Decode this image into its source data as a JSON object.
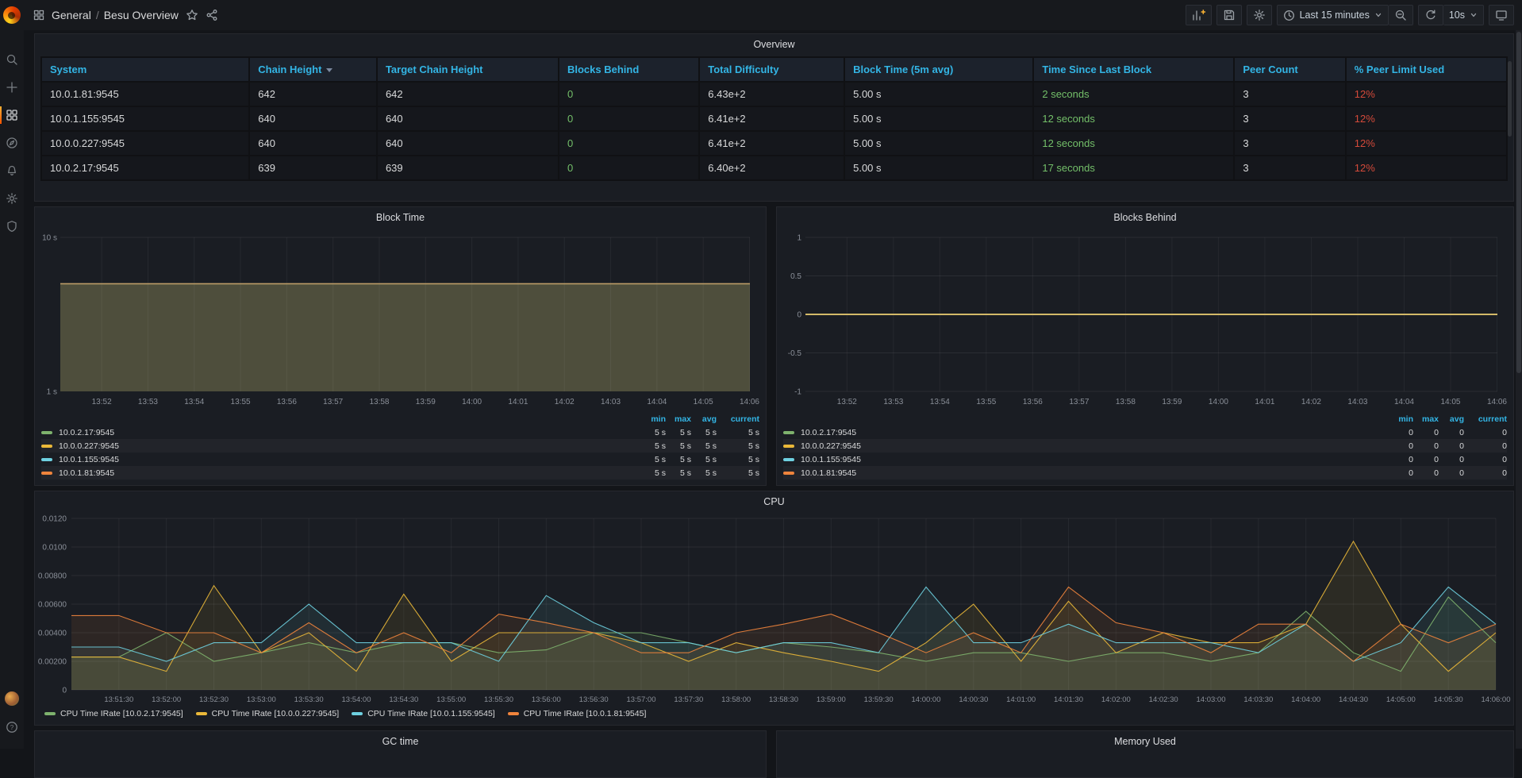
{
  "nav": {
    "breadcrumb": {
      "section": "General",
      "separator": "/",
      "title": "Besu Overview"
    },
    "time_picker_label": "Last 15 minutes",
    "refresh_interval": "10s"
  },
  "panels": {
    "overview": {
      "title": "Overview",
      "columns": [
        "System",
        "Chain Height",
        "Target Chain Height",
        "Blocks Behind",
        "Total Difficulty",
        "Block Time (5m avg)",
        "Time Since Last Block",
        "Peer Count",
        "% Peer Limit Used"
      ],
      "column_widths_pct": [
        14.2,
        8.7,
        12.4,
        9.6,
        9.9,
        12.9,
        13.7,
        7.6,
        11
      ],
      "sorted_column_index": 1,
      "green_columns": [
        3,
        6
      ],
      "red_columns": [
        8
      ],
      "rows": [
        [
          "10.0.1.81:9545",
          "642",
          "642",
          "0",
          "6.43e+2",
          "5.00 s",
          "2 seconds",
          "3",
          "12%"
        ],
        [
          "10.0.1.155:9545",
          "640",
          "640",
          "0",
          "6.41e+2",
          "5.00 s",
          "12 seconds",
          "3",
          "12%"
        ],
        [
          "10.0.0.227:9545",
          "640",
          "640",
          "0",
          "6.41e+2",
          "5.00 s",
          "12 seconds",
          "3",
          "12%"
        ],
        [
          "10.0.2.17:9545",
          "639",
          "639",
          "0",
          "6.40e+2",
          "5.00 s",
          "17 seconds",
          "3",
          "12%"
        ]
      ]
    },
    "gc_time": {
      "title": "GC time"
    },
    "memory_used": {
      "title": "Memory Used"
    }
  },
  "chart_data": [
    {
      "id": "block-time",
      "type": "area",
      "title": "Block Time",
      "y_scale": "log10",
      "ylim": [
        1,
        10
      ],
      "y_ticks": [
        {
          "label": "10 s",
          "value": 10
        },
        {
          "label": "1 s",
          "value": 1
        }
      ],
      "x_ticks": [
        "13:52",
        "13:53",
        "13:54",
        "13:55",
        "13:56",
        "13:57",
        "13:58",
        "13:59",
        "14:00",
        "14:01",
        "14:02",
        "14:03",
        "14:04",
        "14:05",
        "14:06"
      ],
      "series": [
        {
          "name": "10.0.2.17:9545",
          "color": "#7EB26D",
          "value": 5
        },
        {
          "name": "10.0.0.227:9545",
          "color": "#EAB839",
          "value": 5
        },
        {
          "name": "10.0.1.155:9545",
          "color": "#6ED0E0",
          "value": 5
        },
        {
          "name": "10.0.1.81:9545",
          "color": "#EF843C",
          "value": 5
        }
      ],
      "legend": {
        "columns": [
          "min",
          "max",
          "avg",
          "current"
        ],
        "rows": [
          {
            "name": "10.0.2.17:9545",
            "color": "#7EB26D",
            "values": [
              "5 s",
              "5 s",
              "5 s",
              "5 s"
            ]
          },
          {
            "name": "10.0.0.227:9545",
            "color": "#EAB839",
            "values": [
              "5 s",
              "5 s",
              "5 s",
              "5 s"
            ]
          },
          {
            "name": "10.0.1.155:9545",
            "color": "#6ED0E0",
            "values": [
              "5 s",
              "5 s",
              "5 s",
              "5 s"
            ]
          },
          {
            "name": "10.0.1.81:9545",
            "color": "#EF843C",
            "values": [
              "5 s",
              "5 s",
              "5 s",
              "5 s"
            ]
          }
        ]
      }
    },
    {
      "id": "blocks-behind",
      "type": "line",
      "title": "Blocks Behind",
      "ylim": [
        -1,
        1
      ],
      "y_ticks": [
        {
          "label": "1",
          "value": 1
        },
        {
          "label": "0.5",
          "value": 0.5
        },
        {
          "label": "0",
          "value": 0
        },
        {
          "label": "-0.5",
          "value": -0.5
        },
        {
          "label": "-1",
          "value": -1
        }
      ],
      "x_ticks": [
        "13:52",
        "13:53",
        "13:54",
        "13:55",
        "13:56",
        "13:57",
        "13:58",
        "13:59",
        "14:00",
        "14:01",
        "14:02",
        "14:03",
        "14:04",
        "14:05",
        "14:06"
      ],
      "flat_value": 0,
      "flat_line_color": "#D3B968",
      "series": [
        {
          "name": "10.0.2.17:9545",
          "color": "#7EB26D",
          "value": 0
        },
        {
          "name": "10.0.0.227:9545",
          "color": "#EAB839",
          "value": 0
        },
        {
          "name": "10.0.1.155:9545",
          "color": "#6ED0E0",
          "value": 0
        },
        {
          "name": "10.0.1.81:9545",
          "color": "#EF843C",
          "value": 0
        }
      ],
      "legend": {
        "columns": [
          "min",
          "max",
          "avg",
          "current"
        ],
        "rows": [
          {
            "name": "10.0.2.17:9545",
            "color": "#7EB26D",
            "values": [
              "0",
              "0",
              "0",
              "0"
            ]
          },
          {
            "name": "10.0.0.227:9545",
            "color": "#EAB839",
            "values": [
              "0",
              "0",
              "0",
              "0"
            ]
          },
          {
            "name": "10.0.1.155:9545",
            "color": "#6ED0E0",
            "values": [
              "0",
              "0",
              "0",
              "0"
            ]
          },
          {
            "name": "10.0.1.81:9545",
            "color": "#EF843C",
            "values": [
              "0",
              "0",
              "0",
              "0"
            ]
          }
        ]
      }
    },
    {
      "id": "cpu",
      "type": "line",
      "title": "CPU",
      "ylim": [
        0,
        0.012
      ],
      "y_ticks": [
        {
          "label": "0.0120",
          "value": 0.012
        },
        {
          "label": "0.0100",
          "value": 0.01
        },
        {
          "label": "0.00800",
          "value": 0.008
        },
        {
          "label": "0.00600",
          "value": 0.006
        },
        {
          "label": "0.00400",
          "value": 0.004
        },
        {
          "label": "0.00200",
          "value": 0.002
        },
        {
          "label": "0",
          "value": 0
        }
      ],
      "x_ticks": [
        "13:51:30",
        "13:52:00",
        "13:52:30",
        "13:53:00",
        "13:53:30",
        "13:54:00",
        "13:54:30",
        "13:55:00",
        "13:55:30",
        "13:56:00",
        "13:56:30",
        "13:57:00",
        "13:57:30",
        "13:58:00",
        "13:58:30",
        "13:59:00",
        "13:59:30",
        "14:00:00",
        "14:00:30",
        "14:01:00",
        "14:01:30",
        "14:02:00",
        "14:02:30",
        "14:03:00",
        "14:03:30",
        "14:04:00",
        "14:04:30",
        "14:05:00",
        "14:05:30",
        "14:06:00"
      ],
      "series": [
        {
          "name": "CPU Time IRate [10.0.2.17:9545]",
          "color": "#7EB26D",
          "values": [
            0.0023,
            0.004,
            0.002,
            0.0026,
            0.0033,
            0.0026,
            0.0033,
            0.0033,
            0.0026,
            0.0028,
            0.004,
            0.004,
            0.0033,
            0.0026,
            0.0033,
            0.003,
            0.0026,
            0.002,
            0.0026,
            0.0026,
            0.002,
            0.0026,
            0.0026,
            0.002,
            0.0026,
            0.0055,
            0.0026,
            0.0013,
            0.0065,
            0.0033
          ]
        },
        {
          "name": "CPU Time IRate [10.0.0.227:9545]",
          "color": "#EAB839",
          "values": [
            0.0023,
            0.0013,
            0.0073,
            0.0026,
            0.004,
            0.0013,
            0.0067,
            0.002,
            0.004,
            0.004,
            0.004,
            0.0033,
            0.002,
            0.0033,
            0.0026,
            0.002,
            0.0013,
            0.0033,
            0.006,
            0.002,
            0.0062,
            0.0026,
            0.004,
            0.0033,
            0.0033,
            0.0046,
            0.0104,
            0.0046,
            0.0013,
            0.004
          ]
        },
        {
          "name": "CPU Time IRate [10.0.1.155:9545]",
          "color": "#6ED0E0",
          "values": [
            0.003,
            0.002,
            0.0033,
            0.0033,
            0.006,
            0.0033,
            0.0033,
            0.0033,
            0.002,
            0.0066,
            0.0047,
            0.0033,
            0.0033,
            0.0026,
            0.0033,
            0.0033,
            0.0026,
            0.0072,
            0.0033,
            0.0033,
            0.0046,
            0.0033,
            0.0033,
            0.0033,
            0.0026,
            0.0046,
            0.002,
            0.0033,
            0.0072,
            0.0046
          ]
        },
        {
          "name": "CPU Time IRate [10.0.1.81:9545]",
          "color": "#EF843C",
          "values": [
            0.0052,
            0.004,
            0.004,
            0.0026,
            0.0047,
            0.0026,
            0.004,
            0.0026,
            0.0053,
            0.0047,
            0.004,
            0.0026,
            0.0026,
            0.004,
            0.0046,
            0.0053,
            0.004,
            0.0026,
            0.004,
            0.0026,
            0.0072,
            0.0047,
            0.004,
            0.0026,
            0.0046,
            0.0046,
            0.002,
            0.0046,
            0.0033,
            0.0046
          ]
        }
      ]
    }
  ],
  "colors": {
    "header_blue": "#33B5E5",
    "good_green": "#73BF69",
    "bad_red": "#D44A3A"
  }
}
